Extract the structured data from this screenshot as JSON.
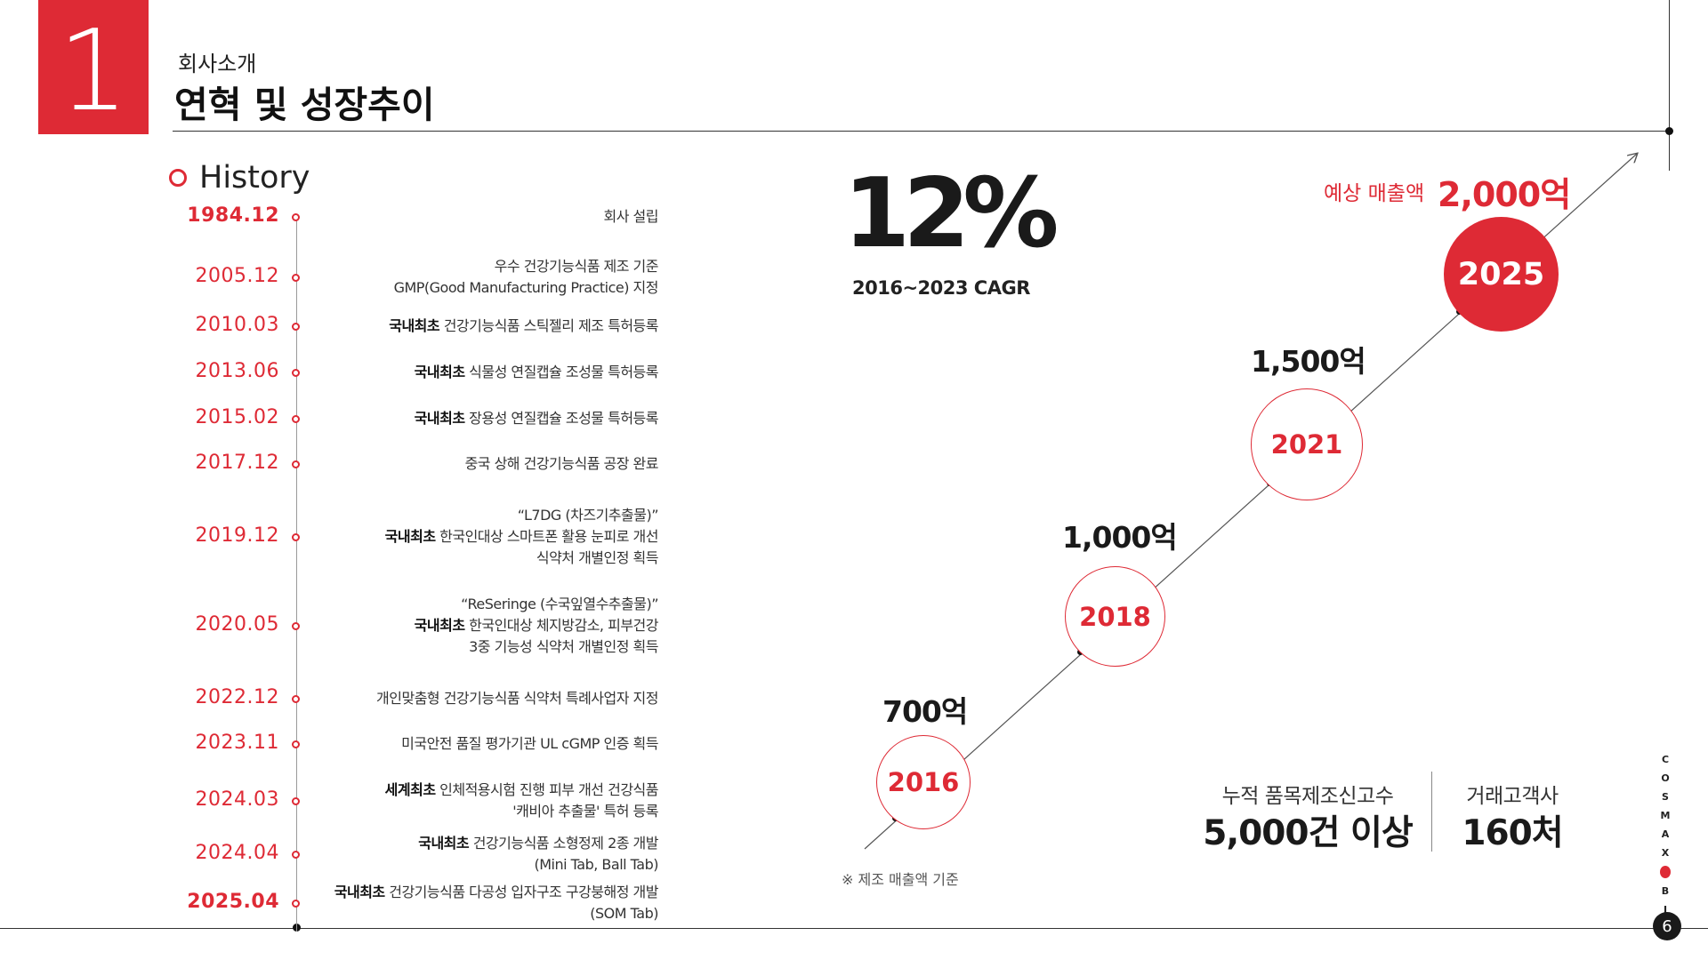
{
  "section": {
    "number": "1",
    "subtitle": "회사소개",
    "title": "연혁 및 성장추이"
  },
  "history": {
    "heading": "History",
    "items": [
      {
        "date": "1984.12",
        "bold": "",
        "text": "회사 설립",
        "lines": []
      },
      {
        "date": "2005.12",
        "bold": "",
        "text": "",
        "lines": [
          "우수 건강기능식품 제조 기준",
          "GMP(Good Manufacturing Practice) 지정"
        ]
      },
      {
        "date": "2010.03",
        "bold": "국내최초",
        "text": " 건강기능식품 스틱젤리 제조 특허등록",
        "lines": []
      },
      {
        "date": "2013.06",
        "bold": "국내최초",
        "text": " 식물성 연질캡슐 조성물 특허등록",
        "lines": []
      },
      {
        "date": "2015.02",
        "bold": "국내최초",
        "text": " 장용성 연질캡슐 조성물 특허등록",
        "lines": []
      },
      {
        "date": "2017.12",
        "bold": "",
        "text": "중국 상해 건강기능식품 공장 완료",
        "lines": []
      },
      {
        "date": "2019.12",
        "bold": "",
        "text": "",
        "lines": [
          "“L7DG (차즈기추출물)”",
          "국내최초|한국인대상 스마트폰 활용 눈피로 개선",
          "식약처 개별인정 획득"
        ]
      },
      {
        "date": "2020.05",
        "bold": "",
        "text": "",
        "lines": [
          "“ReSeringe (수국잎열수추출물)”",
          "국내최초|한국인대상 체지방감소, 피부건강",
          "3중 기능성 식약처 개별인정 획득"
        ]
      },
      {
        "date": "2022.12",
        "bold": "",
        "text": "개인맞춤형 건강기능식품 식약처 특례사업자 지정",
        "lines": []
      },
      {
        "date": "2023.11",
        "bold": "",
        "text": "미국안전 품질 평가기관 UL cGMP 인증 획득",
        "lines": []
      },
      {
        "date": "2024.03",
        "bold": "",
        "text": "",
        "lines": [
          "세계최초|인체적용시험 진행 피부 개선 건강식품",
          "'캐비아 추출물' 특허 등록"
        ]
      },
      {
        "date": "2024.04",
        "bold": "",
        "text": "",
        "lines": [
          "국내최초|건강기능식품 소형정제 2종 개발",
          "(Mini Tab, Ball Tab)"
        ]
      },
      {
        "date": "2025.04",
        "bold": "",
        "text": "",
        "lines": [
          "국내최초|건강기능식품 다공성 입자구조 구강붕해정 개발",
          "(SOM Tab)"
        ]
      }
    ]
  },
  "growth": {
    "cagr_value": "12%",
    "cagr_label": "2016~2023 CAGR",
    "points": [
      {
        "year": "2016",
        "value": "700억"
      },
      {
        "year": "2018",
        "value": "1,000억"
      },
      {
        "year": "2021",
        "value": "1,500억"
      },
      {
        "year": "2025",
        "value": "2,000억"
      }
    ],
    "forecast_label": "예상 매출액",
    "footnote": "※ 제조 매출액 기준"
  },
  "stats": [
    {
      "label": "누적 품목제조신고수",
      "value": "5,000건 이상"
    },
    {
      "label": "거래고객사",
      "value": "160처"
    }
  ],
  "brand": {
    "letters": [
      "C",
      "O",
      "S",
      "M",
      "A",
      "X",
      "B",
      "I",
      "O"
    ]
  },
  "page_number": "6",
  "colors": {
    "accent": "#de2a35",
    "text": "#1a1a1a"
  }
}
